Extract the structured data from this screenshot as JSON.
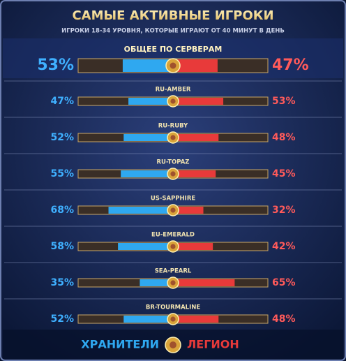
{
  "chart_data": {
    "type": "diverging_bar",
    "title": "САМЫЕ АКТИВНЫЕ ИГРОКИ",
    "subtitle": "ИГРОКИ 18-34 УРОВНЯ, КОТОРЫЕ ИГРАЮТ ОТ 40 МИНУТ В ДЕНЬ",
    "categories": [
      "ОБЩЕЕ ПО СЕРВЕРАМ",
      "RU-AMBER",
      "RU-RUBY",
      "RU-TOPAZ",
      "US-SAPPHIRE",
      "EU-EMERALD",
      "SEA-PEARL",
      "BR-TOURMALINE"
    ],
    "xlim": [
      0,
      100
    ],
    "series": [
      {
        "name": "ХРАНИТЕЛИ",
        "color": "#2fa8f0",
        "values": [
          53,
          47,
          52,
          55,
          68,
          58,
          35,
          52
        ],
        "value_labels": [
          "53%",
          "47%",
          "52%",
          "55%",
          "68%",
          "58%",
          "35%",
          "52%"
        ]
      },
      {
        "name": "ЛЕГИОН",
        "color": "#e83a3a",
        "values": [
          47,
          53,
          48,
          45,
          32,
          42,
          65,
          48
        ],
        "value_labels": [
          "47%",
          "53%",
          "48%",
          "45%",
          "32%",
          "42%",
          "65%",
          "48%"
        ]
      }
    ]
  }
}
